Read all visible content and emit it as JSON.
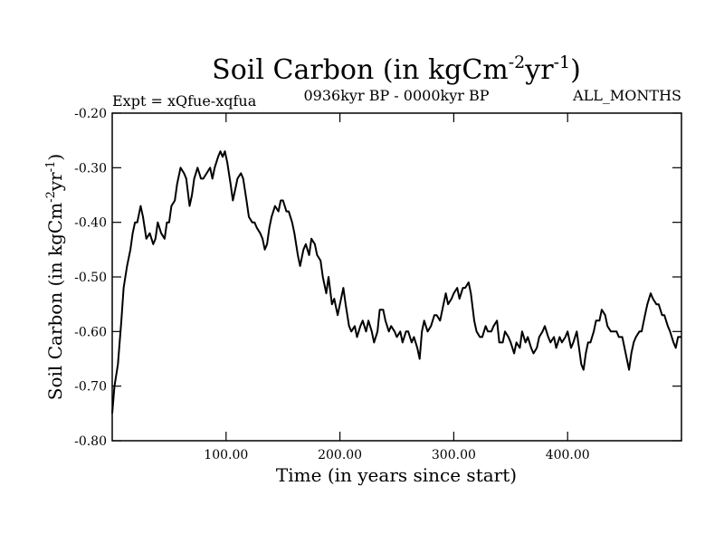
{
  "chart_data": {
    "type": "line",
    "title": "Soil Carbon (in kgCm",
    "title_exp1": "-2",
    "title_mid": "yr",
    "title_exp2": "-1",
    "title_end": ")",
    "expt_label": "Expt = xQfue-xqfua",
    "period_label": "0936kyr BP - 0000kyr BP",
    "months_label": "ALL_MONTHS",
    "xlabel": "Time (in years since start)",
    "ylabel": "Soil Carbon (in kgCm",
    "ylabel_exp1": "-2",
    "ylabel_mid": "yr",
    "ylabel_exp2": "-1",
    "ylabel_end": ")",
    "xlim": [
      0,
      500
    ],
    "ylim": [
      -0.8,
      -0.2
    ],
    "xticks": [
      100,
      200,
      300,
      400
    ],
    "xtick_labels": [
      "100.00",
      "200.00",
      "300.00",
      "400.00"
    ],
    "yticks": [
      -0.2,
      -0.3,
      -0.4,
      -0.5,
      -0.6,
      -0.7,
      -0.8
    ],
    "ytick_labels": [
      "-0.20",
      "-0.30",
      "-0.40",
      "-0.50",
      "-0.60",
      "-0.70",
      "-0.80"
    ],
    "grid": false,
    "line_color": "#000000",
    "series": [
      {
        "name": "Soil Carbon",
        "points": [
          [
            0,
            -0.75
          ],
          [
            2,
            -0.7
          ],
          [
            5,
            -0.66
          ],
          [
            8,
            -0.58
          ],
          [
            10,
            -0.52
          ],
          [
            13,
            -0.48
          ],
          [
            16,
            -0.45
          ],
          [
            18,
            -0.42
          ],
          [
            20,
            -0.4
          ],
          [
            22,
            -0.4
          ],
          [
            25,
            -0.37
          ],
          [
            27,
            -0.39
          ],
          [
            30,
            -0.43
          ],
          [
            33,
            -0.42
          ],
          [
            36,
            -0.44
          ],
          [
            38,
            -0.43
          ],
          [
            40,
            -0.4
          ],
          [
            43,
            -0.42
          ],
          [
            46,
            -0.43
          ],
          [
            48,
            -0.4
          ],
          [
            50,
            -0.4
          ],
          [
            52,
            -0.37
          ],
          [
            55,
            -0.36
          ],
          [
            57,
            -0.33
          ],
          [
            60,
            -0.3
          ],
          [
            63,
            -0.31
          ],
          [
            65,
            -0.32
          ],
          [
            68,
            -0.37
          ],
          [
            70,
            -0.35
          ],
          [
            72,
            -0.32
          ],
          [
            75,
            -0.3
          ],
          [
            78,
            -0.32
          ],
          [
            80,
            -0.32
          ],
          [
            83,
            -0.31
          ],
          [
            86,
            -0.3
          ],
          [
            88,
            -0.32
          ],
          [
            90,
            -0.3
          ],
          [
            93,
            -0.28
          ],
          [
            95,
            -0.27
          ],
          [
            97,
            -0.28
          ],
          [
            99,
            -0.27
          ],
          [
            101,
            -0.29
          ],
          [
            104,
            -0.33
          ],
          [
            106,
            -0.36
          ],
          [
            108,
            -0.34
          ],
          [
            110,
            -0.32
          ],
          [
            113,
            -0.31
          ],
          [
            115,
            -0.32
          ],
          [
            118,
            -0.36
          ],
          [
            120,
            -0.39
          ],
          [
            123,
            -0.4
          ],
          [
            125,
            -0.4
          ],
          [
            127,
            -0.41
          ],
          [
            130,
            -0.42
          ],
          [
            132,
            -0.43
          ],
          [
            134,
            -0.45
          ],
          [
            136,
            -0.44
          ],
          [
            138,
            -0.41
          ],
          [
            140,
            -0.39
          ],
          [
            143,
            -0.37
          ],
          [
            146,
            -0.38
          ],
          [
            148,
            -0.36
          ],
          [
            150,
            -0.36
          ],
          [
            153,
            -0.38
          ],
          [
            155,
            -0.38
          ],
          [
            158,
            -0.4
          ],
          [
            160,
            -0.42
          ],
          [
            163,
            -0.46
          ],
          [
            165,
            -0.48
          ],
          [
            168,
            -0.45
          ],
          [
            170,
            -0.44
          ],
          [
            173,
            -0.46
          ],
          [
            175,
            -0.43
          ],
          [
            178,
            -0.44
          ],
          [
            180,
            -0.46
          ],
          [
            183,
            -0.47
          ],
          [
            185,
            -0.5
          ],
          [
            188,
            -0.53
          ],
          [
            190,
            -0.5
          ],
          [
            193,
            -0.55
          ],
          [
            195,
            -0.54
          ],
          [
            198,
            -0.57
          ],
          [
            200,
            -0.55
          ],
          [
            203,
            -0.52
          ],
          [
            205,
            -0.55
          ],
          [
            208,
            -0.59
          ],
          [
            210,
            -0.6
          ],
          [
            213,
            -0.59
          ],
          [
            215,
            -0.61
          ],
          [
            218,
            -0.59
          ],
          [
            220,
            -0.58
          ],
          [
            223,
            -0.6
          ],
          [
            225,
            -0.58
          ],
          [
            228,
            -0.6
          ],
          [
            230,
            -0.62
          ],
          [
            233,
            -0.6
          ],
          [
            235,
            -0.56
          ],
          [
            238,
            -0.56
          ],
          [
            240,
            -0.58
          ],
          [
            243,
            -0.6
          ],
          [
            245,
            -0.59
          ],
          [
            248,
            -0.6
          ],
          [
            250,
            -0.61
          ],
          [
            253,
            -0.6
          ],
          [
            255,
            -0.62
          ],
          [
            258,
            -0.6
          ],
          [
            260,
            -0.6
          ],
          [
            263,
            -0.62
          ],
          [
            265,
            -0.61
          ],
          [
            268,
            -0.63
          ],
          [
            270,
            -0.65
          ],
          [
            272,
            -0.6
          ],
          [
            274,
            -0.58
          ],
          [
            277,
            -0.6
          ],
          [
            280,
            -0.59
          ],
          [
            283,
            -0.57
          ],
          [
            285,
            -0.57
          ],
          [
            288,
            -0.58
          ],
          [
            290,
            -0.56
          ],
          [
            293,
            -0.53
          ],
          [
            295,
            -0.55
          ],
          [
            298,
            -0.54
          ],
          [
            300,
            -0.53
          ],
          [
            303,
            -0.52
          ],
          [
            305,
            -0.54
          ],
          [
            308,
            -0.52
          ],
          [
            310,
            -0.52
          ],
          [
            313,
            -0.51
          ],
          [
            315,
            -0.53
          ],
          [
            318,
            -0.58
          ],
          [
            320,
            -0.6
          ],
          [
            323,
            -0.61
          ],
          [
            325,
            -0.61
          ],
          [
            328,
            -0.59
          ],
          [
            330,
            -0.6
          ],
          [
            333,
            -0.6
          ],
          [
            335,
            -0.59
          ],
          [
            338,
            -0.58
          ],
          [
            340,
            -0.62
          ],
          [
            343,
            -0.62
          ],
          [
            345,
            -0.6
          ],
          [
            348,
            -0.61
          ],
          [
            350,
            -0.62
          ],
          [
            353,
            -0.64
          ],
          [
            355,
            -0.62
          ],
          [
            358,
            -0.63
          ],
          [
            360,
            -0.6
          ],
          [
            363,
            -0.62
          ],
          [
            365,
            -0.61
          ],
          [
            368,
            -0.63
          ],
          [
            370,
            -0.64
          ],
          [
            373,
            -0.63
          ],
          [
            375,
            -0.61
          ],
          [
            378,
            -0.6
          ],
          [
            380,
            -0.59
          ],
          [
            383,
            -0.61
          ],
          [
            385,
            -0.62
          ],
          [
            388,
            -0.61
          ],
          [
            390,
            -0.63
          ],
          [
            393,
            -0.61
          ],
          [
            395,
            -0.62
          ],
          [
            398,
            -0.61
          ],
          [
            400,
            -0.6
          ],
          [
            403,
            -0.63
          ],
          [
            405,
            -0.62
          ],
          [
            408,
            -0.6
          ],
          [
            410,
            -0.63
          ],
          [
            412,
            -0.66
          ],
          [
            414,
            -0.67
          ],
          [
            416,
            -0.64
          ],
          [
            418,
            -0.62
          ],
          [
            420,
            -0.62
          ],
          [
            423,
            -0.6
          ],
          [
            425,
            -0.58
          ],
          [
            428,
            -0.58
          ],
          [
            430,
            -0.56
          ],
          [
            433,
            -0.57
          ],
          [
            435,
            -0.59
          ],
          [
            438,
            -0.6
          ],
          [
            440,
            -0.6
          ],
          [
            443,
            -0.6
          ],
          [
            445,
            -0.61
          ],
          [
            448,
            -0.61
          ],
          [
            450,
            -0.63
          ],
          [
            452,
            -0.65
          ],
          [
            454,
            -0.67
          ],
          [
            456,
            -0.64
          ],
          [
            458,
            -0.62
          ],
          [
            460,
            -0.61
          ],
          [
            463,
            -0.6
          ],
          [
            465,
            -0.6
          ],
          [
            468,
            -0.57
          ],
          [
            470,
            -0.55
          ],
          [
            473,
            -0.53
          ],
          [
            475,
            -0.54
          ],
          [
            478,
            -0.55
          ],
          [
            480,
            -0.55
          ],
          [
            483,
            -0.57
          ],
          [
            485,
            -0.57
          ],
          [
            488,
            -0.59
          ],
          [
            490,
            -0.6
          ],
          [
            493,
            -0.62
          ],
          [
            495,
            -0.63
          ],
          [
            497,
            -0.61
          ],
          [
            500,
            -0.61
          ]
        ]
      }
    ]
  }
}
